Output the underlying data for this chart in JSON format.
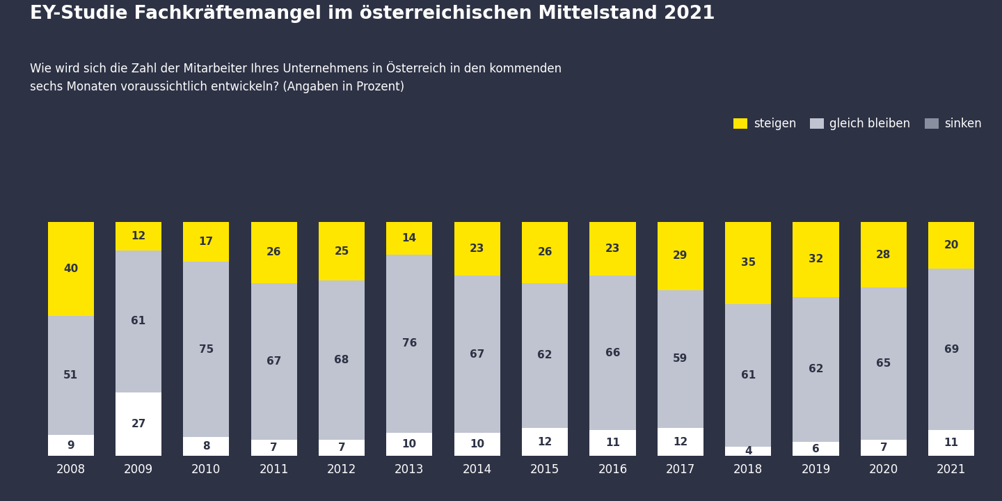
{
  "title": "EY-Studie Fachkräftemangel im österreichischen Mittelstand 2021",
  "subtitle": "Wie wird sich die Zahl der Mitarbeiter Ihres Unternehmens in Österreich in den kommenden\nsechs Monaten voraussichtlich entwickeln? (Angaben in Prozent)",
  "years": [
    2008,
    2009,
    2010,
    2011,
    2012,
    2013,
    2014,
    2015,
    2016,
    2017,
    2018,
    2019,
    2020,
    2021
  ],
  "steigen": [
    40,
    12,
    17,
    26,
    25,
    14,
    23,
    26,
    23,
    29,
    35,
    32,
    28,
    20
  ],
  "gleich_bleiben": [
    51,
    61,
    75,
    67,
    68,
    76,
    67,
    62,
    66,
    59,
    61,
    62,
    65,
    69
  ],
  "sinken": [
    9,
    27,
    8,
    7,
    7,
    10,
    10,
    12,
    11,
    12,
    4,
    6,
    7,
    11
  ],
  "color_steigen": "#ffe600",
  "color_gleich": "#c0c4d0",
  "color_sinken": "#ffffff",
  "color_sinken_legend": "#8a8fa0",
  "bg_color": "#2d3245",
  "text_color": "#ffffff",
  "label_color": "#2d3245",
  "label_steigen": "steigen",
  "label_gleich": "gleich bleiben",
  "label_sinken": "sinken",
  "bar_width": 0.68
}
